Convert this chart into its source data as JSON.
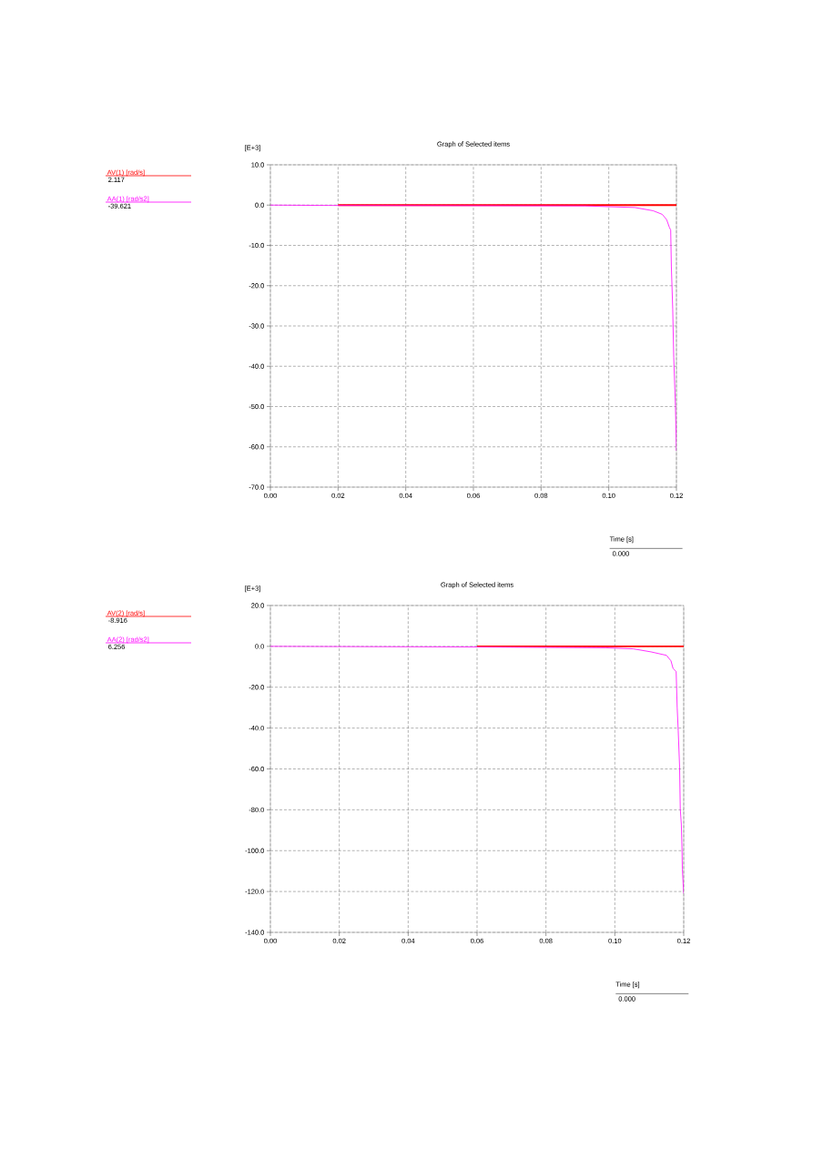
{
  "chart_data": [
    {
      "type": "line",
      "title": "Graph of Selected items",
      "ylabel": "[E+3]",
      "xlabel": "Time [s]",
      "series": [
        {
          "name": "AV(1) [rad/s]",
          "color": "#ff0000",
          "x": [
            0.02,
            0.12
          ],
          "values": [
            0,
            0
          ]
        },
        {
          "name": "AA(1) [rad/s2]",
          "color": "#ff00ff",
          "x": [
            0,
            0.02,
            0.093,
            0.1077,
            0.1131,
            0.1158,
            0.1171,
            0.1179,
            0.1183,
            0.1185,
            0.1189,
            0.1192,
            0.1197,
            0.1199,
            0.12
          ],
          "values": [
            0,
            -0.1,
            -0.2,
            -0.6,
            -1.4,
            -2.3,
            -3.6,
            -5.5,
            -6.2,
            -15.3,
            -25.8,
            -37.8,
            -49.8,
            -57.3,
            -61.0
          ]
        }
      ],
      "annotations": [
        "2.117",
        "-39.621",
        "0.000"
      ],
      "xlim": [
        0,
        0.12
      ],
      "xticks": [
        {
          "value": 0,
          "label": "0.00"
        },
        {
          "value": 0.02,
          "label": "0.02"
        },
        {
          "value": 0.04,
          "label": "0.04"
        },
        {
          "value": 0.06,
          "label": "0.06"
        },
        {
          "value": 0.08,
          "label": "0.08"
        },
        {
          "value": 0.1,
          "label": "0.10"
        },
        {
          "value": 0.12,
          "label": "0.12"
        }
      ],
      "ylim": [
        -70,
        10
      ],
      "yticks": [
        {
          "value": -70,
          "label": "-70.0"
        },
        {
          "value": -60,
          "label": "-60.0"
        },
        {
          "value": -50,
          "label": "-50.0"
        },
        {
          "value": -40,
          "label": "-40.0"
        },
        {
          "value": -30,
          "label": "-30.0"
        },
        {
          "value": -20,
          "label": "-20.0"
        },
        {
          "value": -10,
          "label": "-10.0"
        },
        {
          "value": 0,
          "label": "0.0"
        },
        {
          "value": 10,
          "label": "10.0"
        }
      ],
      "grid": true,
      "legend": "left"
    },
    {
      "type": "line",
      "title": "Graph of Selected items",
      "ylabel": "[E+3]",
      "xlabel": "Time [s]",
      "series": [
        {
          "name": "AV(2) [rad/s]",
          "color": "#ff0000",
          "x": [
            0.06,
            0.12
          ],
          "values": [
            0,
            0
          ]
        },
        {
          "name": "AA(2) [rad/s2]",
          "color": "#ff00ff",
          "x": [
            0,
            0.06,
            0.0973,
            0.1053,
            0.1105,
            0.115,
            0.1163,
            0.1169,
            0.1178,
            0.1181,
            0.1184,
            0.1188,
            0.119,
            0.1193,
            0.1195,
            0.1196,
            0.12
          ],
          "values": [
            0,
            -0.3,
            -0.7,
            -1.2,
            -2.7,
            -4.4,
            -7.1,
            -10.8,
            -12.3,
            -30,
            -41.2,
            -59,
            -79.7,
            -87,
            -99,
            -109,
            -121
          ]
        }
      ],
      "annotations": [
        "-8.916",
        "6.256",
        "0.000"
      ],
      "xlim": [
        0,
        0.12
      ],
      "xticks": [
        {
          "value": 0,
          "label": "0.00"
        },
        {
          "value": 0.02,
          "label": "0.02"
        },
        {
          "value": 0.04,
          "label": "0.04"
        },
        {
          "value": 0.06,
          "label": "0.06"
        },
        {
          "value": 0.08,
          "label": "0.08"
        },
        {
          "value": 0.1,
          "label": "0.10"
        },
        {
          "value": 0.12,
          "label": "0.12"
        }
      ],
      "ylim": [
        -140,
        20
      ],
      "yticks": [
        {
          "value": -140,
          "label": "-140.0"
        },
        {
          "value": -120,
          "label": "-120.0"
        },
        {
          "value": -100,
          "label": "-100.0"
        },
        {
          "value": -80,
          "label": "-80.0"
        },
        {
          "value": -60,
          "label": "-60.0"
        },
        {
          "value": -40,
          "label": "-40.0"
        },
        {
          "value": -20,
          "label": "-20.0"
        },
        {
          "value": 0,
          "label": "0.0"
        },
        {
          "value": 20,
          "label": "20.0"
        }
      ],
      "grid": true,
      "legend": "left"
    }
  ]
}
